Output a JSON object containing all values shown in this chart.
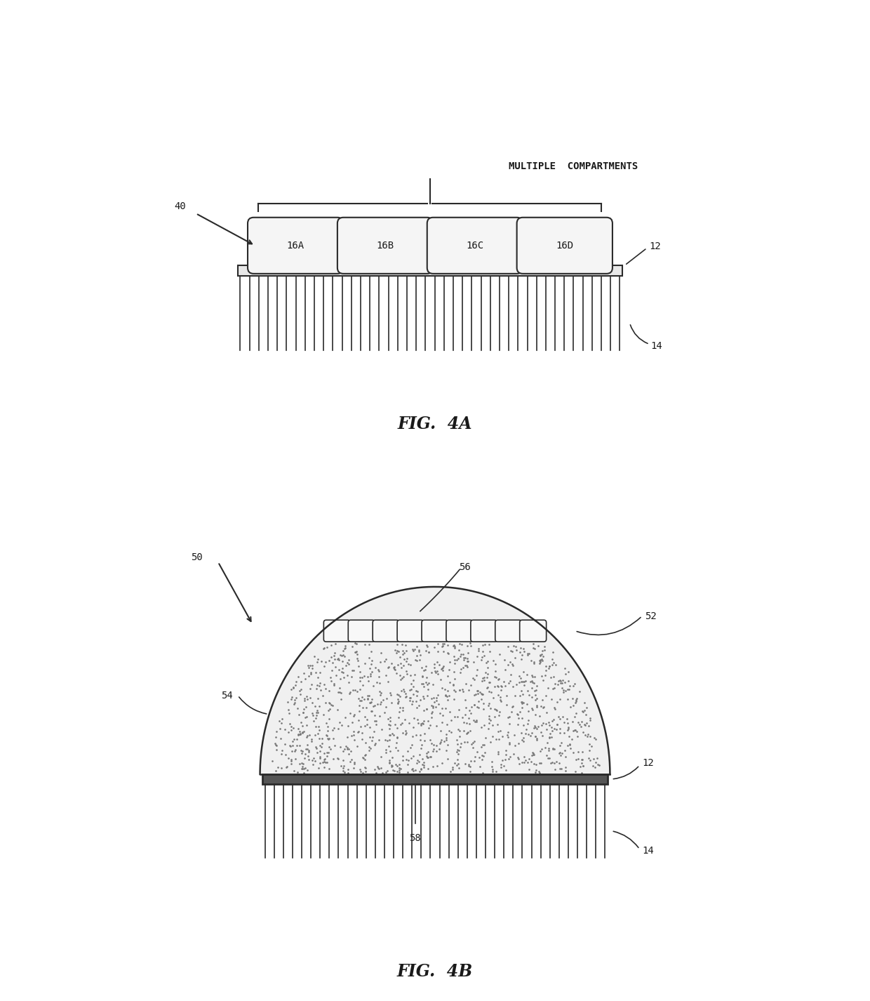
{
  "bg_color": "#ffffff",
  "fig_width": 12.4,
  "fig_height": 14.26,
  "fig4a": {
    "label": "40",
    "compartment_labels": [
      "16A",
      "16B",
      "16C",
      "16D"
    ],
    "label_12": "12",
    "label_14": "14",
    "brace_label": "MULTIPLE  COMPARTMENTS",
    "caption": "FIG.  4A"
  },
  "fig4b": {
    "label": "50",
    "label_52": "52",
    "label_54": "54",
    "label_56": "56",
    "label_58": "58",
    "label_12": "12",
    "label_14": "14",
    "caption": "FIG.  4B"
  },
  "line_color": "#2a2a2a",
  "text_color": "#1a1a1a"
}
